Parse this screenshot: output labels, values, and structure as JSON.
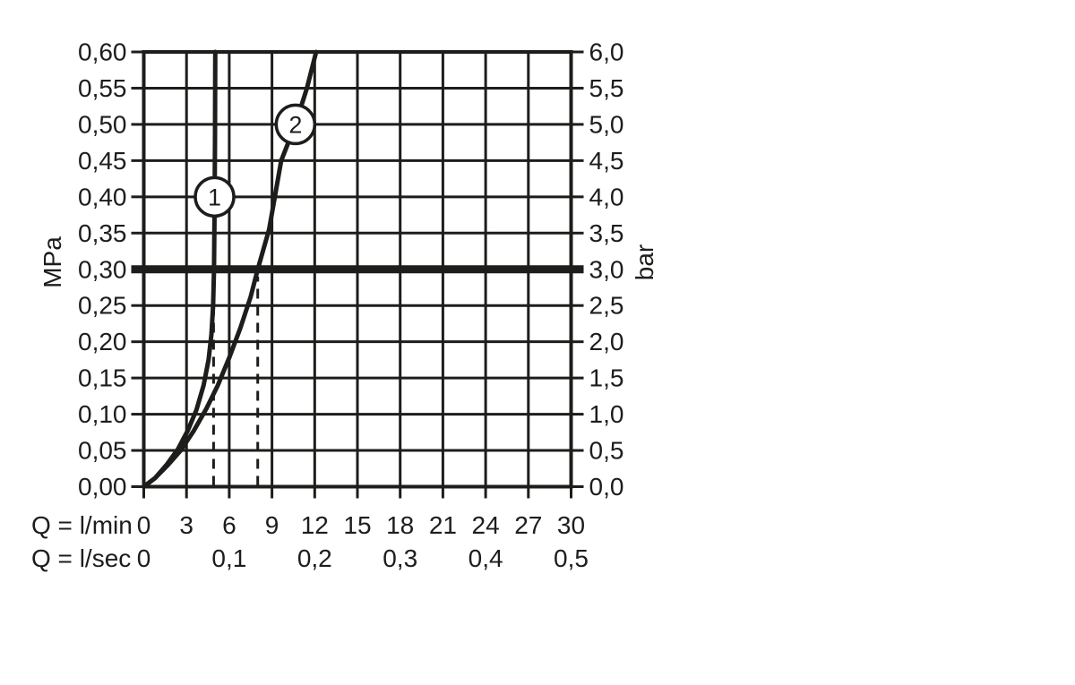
{
  "chart_data": {
    "type": "line",
    "title": "",
    "colors": {
      "line": "#1d1d1b",
      "background": "#ffffff"
    },
    "grid": true,
    "x_axis": {
      "label_lmin": "Q = l/min",
      "label_lsec": "Q = l/sec",
      "lmin_ticks": [
        {
          "q": 0,
          "label": "0"
        },
        {
          "q": 3,
          "label": "3"
        },
        {
          "q": 6,
          "label": "6"
        },
        {
          "q": 9,
          "label": "9"
        },
        {
          "q": 12,
          "label": "12"
        },
        {
          "q": 15,
          "label": "15"
        },
        {
          "q": 18,
          "label": "18"
        },
        {
          "q": 21,
          "label": "21"
        },
        {
          "q": 24,
          "label": "24"
        },
        {
          "q": 27,
          "label": "27"
        },
        {
          "q": 30,
          "label": "30"
        }
      ],
      "lsec_ticks": [
        {
          "q": 0,
          "label": "0"
        },
        {
          "q": 6,
          "label": "0,1"
        },
        {
          "q": 12,
          "label": "0,2"
        },
        {
          "q": 18,
          "label": "0,3"
        },
        {
          "q": 24,
          "label": "0,4"
        },
        {
          "q": 30,
          "label": "0,5"
        }
      ],
      "range_lmin": [
        0,
        30
      ],
      "gridline_step_lmin": 3
    },
    "y_axis_left": {
      "label": "MPa",
      "range": [
        0,
        0.6
      ],
      "gridline_step": 0.05,
      "ticks": [
        {
          "v": 0.6,
          "label": "0,60"
        },
        {
          "v": 0.55,
          "label": "0,55"
        },
        {
          "v": 0.5,
          "label": "0,50"
        },
        {
          "v": 0.45,
          "label": "0,45"
        },
        {
          "v": 0.4,
          "label": "0,40"
        },
        {
          "v": 0.35,
          "label": "0,35"
        },
        {
          "v": 0.3,
          "label": "0,30"
        },
        {
          "v": 0.25,
          "label": "0,25"
        },
        {
          "v": 0.2,
          "label": "0,20"
        },
        {
          "v": 0.15,
          "label": "0,15"
        },
        {
          "v": 0.1,
          "label": "0,10"
        },
        {
          "v": 0.05,
          "label": "0,05"
        },
        {
          "v": 0.0,
          "label": "0,00"
        }
      ]
    },
    "y_axis_right": {
      "label": "bar",
      "range": [
        0,
        6.0
      ],
      "ticks": [
        {
          "v": 0.6,
          "label": "6,0"
        },
        {
          "v": 0.55,
          "label": "5,5"
        },
        {
          "v": 0.5,
          "label": "5,0"
        },
        {
          "v": 0.45,
          "label": "4,5"
        },
        {
          "v": 0.4,
          "label": "4,0"
        },
        {
          "v": 0.35,
          "label": "3,5"
        },
        {
          "v": 0.3,
          "label": "3,0"
        },
        {
          "v": 0.25,
          "label": "2,5"
        },
        {
          "v": 0.2,
          "label": "2,0"
        },
        {
          "v": 0.15,
          "label": "1,5"
        },
        {
          "v": 0.1,
          "label": "1,0"
        },
        {
          "v": 0.05,
          "label": "0,5"
        },
        {
          "v": 0.0,
          "label": "0,0"
        }
      ]
    },
    "reference_line": {
      "mpa": 0.3,
      "bar": 3.0
    },
    "flow_at_reference": [
      {
        "curve": "1",
        "q_lmin": 4.9
      },
      {
        "curve": "2",
        "q_lmin": 8.0
      }
    ],
    "series": [
      {
        "name": "1",
        "marker": {
          "label": "1",
          "q_lmin": 4.97,
          "mpa": 0.4
        },
        "points": [
          [
            0,
            0
          ],
          [
            0.8,
            0.012
          ],
          [
            1.6,
            0.03
          ],
          [
            2.4,
            0.052
          ],
          [
            3.1,
            0.078
          ],
          [
            3.7,
            0.106
          ],
          [
            4.2,
            0.14
          ],
          [
            4.55,
            0.175
          ],
          [
            4.75,
            0.21
          ],
          [
            4.87,
            0.25
          ],
          [
            4.93,
            0.3
          ],
          [
            4.97,
            0.38
          ],
          [
            5.0,
            0.48
          ],
          [
            5.02,
            0.6
          ]
        ]
      },
      {
        "name": "2",
        "marker": {
          "label": "2",
          "q_lmin": 10.65,
          "mpa": 0.5
        },
        "points": [
          [
            0,
            0
          ],
          [
            0.8,
            0.012
          ],
          [
            1.7,
            0.03
          ],
          [
            2.6,
            0.05
          ],
          [
            3.5,
            0.077
          ],
          [
            4.4,
            0.108
          ],
          [
            5.2,
            0.14
          ],
          [
            6.0,
            0.178
          ],
          [
            6.8,
            0.22
          ],
          [
            7.5,
            0.262
          ],
          [
            8.0,
            0.3
          ],
          [
            8.8,
            0.355
          ],
          [
            9.65,
            0.45
          ],
          [
            10.65,
            0.5
          ],
          [
            11.45,
            0.55
          ],
          [
            12.1,
            0.6
          ]
        ]
      }
    ]
  }
}
